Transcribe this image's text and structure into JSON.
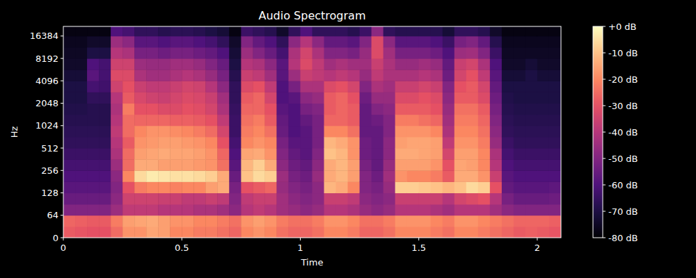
{
  "chart_data": {
    "type": "heatmap",
    "title": "Audio Spectrogram",
    "x_label": "Time",
    "y_label": "Hz",
    "xlim": [
      0,
      2.1
    ],
    "xticks": [
      0,
      0.5,
      1,
      1.5,
      2
    ],
    "ylim": [
      0,
      22050
    ],
    "yticks": [
      0,
      64,
      128,
      256,
      512,
      1024,
      2048,
      4096,
      8192,
      16384
    ],
    "log": "y",
    "x_bins": [
      0,
      0.05,
      0.1,
      0.15,
      0.2,
      0.25,
      0.3,
      0.35,
      0.4,
      0.45,
      0.5,
      0.55,
      0.6,
      0.65,
      0.7,
      0.75,
      0.8,
      0.85,
      0.9,
      0.95,
      1.0,
      1.05,
      1.1,
      1.15,
      1.2,
      1.25,
      1.3,
      1.35,
      1.4,
      1.45,
      1.5,
      1.55,
      1.6,
      1.65,
      1.7,
      1.75,
      1.8,
      1.85,
      1.9,
      1.95,
      2.0,
      2.05,
      2.1
    ],
    "y_bins": [
      0,
      32,
      64,
      90,
      128,
      181,
      256,
      362,
      512,
      724,
      1024,
      1448,
      2048,
      2896,
      4096,
      5793,
      8192,
      11585,
      16384,
      22050
    ],
    "cells": [
      [
        -28,
        -26,
        -50,
        -55,
        -58,
        -60,
        -62,
        -64,
        -66,
        -67,
        -68,
        -69,
        -70,
        -70,
        -72,
        -74,
        -75,
        -76,
        -78
      ],
      [
        -29,
        -27,
        -50,
        -55,
        -58,
        -60,
        -62,
        -64,
        -66,
        -67,
        -68,
        -69,
        -70,
        -70,
        -72,
        -74,
        -75,
        -76,
        -78
      ],
      [
        -30,
        -28,
        -50,
        -55,
        -58,
        -60,
        -62,
        -64,
        -66,
        -67,
        -68,
        -68,
        -66,
        -62,
        -58,
        -60,
        -70,
        -74,
        -78
      ],
      [
        -30,
        -28,
        -50,
        -55,
        -58,
        -60,
        -62,
        -64,
        -66,
        -67,
        -68,
        -68,
        -66,
        -63,
        -62,
        -62,
        -70,
        -74,
        -78
      ],
      [
        -25,
        -22,
        -45,
        -48,
        -50,
        -48,
        -45,
        -42,
        -40,
        -38,
        -40,
        -42,
        -40,
        -35,
        -32,
        -35,
        -40,
        -45,
        -60
      ],
      [
        -18,
        -16,
        -38,
        -35,
        -30,
        -20,
        -25,
        -25,
        -28,
        -25,
        -25,
        -22,
        -28,
        -30,
        -32,
        -35,
        -42,
        -48,
        -62
      ],
      [
        -18,
        -15,
        -38,
        -35,
        -22,
        -6,
        -14,
        -16,
        -18,
        -20,
        -26,
        -30,
        -33,
        -36,
        -42,
        -45,
        -52,
        -58,
        -66
      ],
      [
        -15,
        -14,
        -38,
        -35,
        -20,
        -3,
        -14,
        -15,
        -17,
        -18,
        -26,
        -30,
        -35,
        -38,
        -44,
        -46,
        -52,
        -58,
        -66
      ],
      [
        -16,
        -16,
        -40,
        -36,
        -20,
        -4,
        -16,
        -14,
        -16,
        -18,
        -26,
        -32,
        -36,
        -38,
        -44,
        -46,
        -54,
        -60,
        -68
      ],
      [
        -20,
        -18,
        -40,
        -36,
        -21,
        -5,
        -16,
        -15,
        -16,
        -19,
        -27,
        -32,
        -34,
        -36,
        -42,
        -44,
        -52,
        -58,
        -67
      ],
      [
        -20,
        -18,
        -40,
        -38,
        -20,
        -5,
        -16,
        -15,
        -17,
        -20,
        -27,
        -30,
        -32,
        -34,
        -40,
        -44,
        -52,
        -58,
        -67
      ],
      [
        -22,
        -20,
        -42,
        -38,
        -20,
        -6,
        -17,
        -16,
        -18,
        -22,
        -28,
        -31,
        -33,
        -35,
        -42,
        -46,
        -54,
        -60,
        -68
      ],
      [
        -22,
        -20,
        -42,
        -36,
        -16,
        -8,
        -18,
        -18,
        -20,
        -25,
        -30,
        -34,
        -36,
        -40,
        -46,
        -50,
        -56,
        -62,
        -70
      ],
      [
        -24,
        -22,
        -44,
        -38,
        -14,
        -14,
        -24,
        -26,
        -30,
        -34,
        -38,
        -42,
        -44,
        -48,
        -52,
        -55,
        -60,
        -66,
        -72
      ],
      [
        -26,
        -24,
        -48,
        -50,
        -52,
        -55,
        -58,
        -60,
        -62,
        -64,
        -64,
        -65,
        -66,
        -66,
        -68,
        -70,
        -72,
        -74,
        -78
      ],
      [
        -20,
        -18,
        -40,
        -38,
        -30,
        -10,
        -12,
        -15,
        -20,
        -22,
        -24,
        -26,
        -28,
        -32,
        -36,
        -40,
        -45,
        -50,
        -64
      ],
      [
        -18,
        -16,
        -38,
        -36,
        -28,
        -6,
        -8,
        -14,
        -18,
        -20,
        -22,
        -26,
        -26,
        -30,
        -38,
        -42,
        -50,
        -56,
        -66
      ],
      [
        -20,
        -18,
        -40,
        -36,
        -26,
        -8,
        -14,
        -18,
        -20,
        -24,
        -28,
        -30,
        -34,
        -38,
        -44,
        -48,
        -55,
        -60,
        -68
      ],
      [
        -24,
        -22,
        -44,
        -44,
        -46,
        -45,
        -48,
        -50,
        -52,
        -55,
        -56,
        -58,
        -60,
        -60,
        -58,
        -58,
        -62,
        -66,
        -74
      ],
      [
        -26,
        -24,
        -46,
        -48,
        -50,
        -52,
        -54,
        -56,
        -58,
        -60,
        -60,
        -60,
        -58,
        -52,
        -45,
        -40,
        -42,
        -48,
        -66
      ],
      [
        -26,
        -24,
        -48,
        -50,
        -52,
        -54,
        -56,
        -58,
        -58,
        -58,
        -56,
        -52,
        -48,
        -42,
        -36,
        -32,
        -34,
        -40,
        -60
      ],
      [
        -24,
        -22,
        -46,
        -48,
        -48,
        -46,
        -48,
        -50,
        -52,
        -52,
        -52,
        -50,
        -46,
        -42,
        -38,
        -38,
        -42,
        -48,
        -66
      ],
      [
        -20,
        -18,
        -40,
        -36,
        -12,
        -14,
        -14,
        -10,
        -12,
        -20,
        -26,
        -28,
        -28,
        -32,
        -40,
        -44,
        -50,
        -56,
        -66
      ],
      [
        -20,
        -18,
        -40,
        -36,
        -14,
        -12,
        -12,
        -12,
        -14,
        -20,
        -26,
        -26,
        -26,
        -30,
        -38,
        -42,
        -50,
        -56,
        -66
      ],
      [
        -22,
        -20,
        -42,
        -38,
        -20,
        -16,
        -16,
        -18,
        -18,
        -24,
        -28,
        -28,
        -30,
        -34,
        -40,
        -44,
        -52,
        -58,
        -68
      ],
      [
        -26,
        -24,
        -46,
        -48,
        -50,
        -50,
        -52,
        -54,
        -54,
        -56,
        -56,
        -56,
        -54,
        -50,
        -46,
        -44,
        -46,
        -50,
        -64
      ],
      [
        -26,
        -24,
        -48,
        -50,
        -52,
        -54,
        -56,
        -56,
        -56,
        -56,
        -54,
        -50,
        -46,
        -42,
        -38,
        -36,
        -32,
        -32,
        -48
      ],
      [
        -24,
        -22,
        -46,
        -48,
        -46,
        -44,
        -46,
        -48,
        -48,
        -50,
        -50,
        -48,
        -46,
        -44,
        -42,
        -42,
        -44,
        -48,
        -66
      ],
      [
        -20,
        -18,
        -40,
        -36,
        -8,
        -18,
        -16,
        -14,
        -16,
        -18,
        -22,
        -28,
        -32,
        -36,
        -42,
        -46,
        -52,
        -58,
        -68
      ],
      [
        -20,
        -18,
        -40,
        -36,
        -8,
        -20,
        -16,
        -14,
        -15,
        -18,
        -22,
        -28,
        -32,
        -36,
        -42,
        -46,
        -52,
        -58,
        -68
      ],
      [
        -20,
        -18,
        -40,
        -36,
        -9,
        -20,
        -16,
        -15,
        -15,
        -18,
        -24,
        -28,
        -30,
        -34,
        -40,
        -44,
        -52,
        -58,
        -68
      ],
      [
        -22,
        -20,
        -42,
        -36,
        -10,
        -22,
        -18,
        -16,
        -16,
        -20,
        -26,
        -30,
        -32,
        -36,
        -42,
        -46,
        -54,
        -60,
        -68
      ],
      [
        -24,
        -22,
        -44,
        -40,
        -12,
        -28,
        -30,
        -34,
        -38,
        -42,
        -44,
        -46,
        -48,
        -50,
        -54,
        -56,
        -60,
        -64,
        -72
      ],
      [
        -20,
        -18,
        -40,
        -34,
        -10,
        -14,
        -15,
        -16,
        -18,
        -20,
        -22,
        -24,
        -28,
        -30,
        -34,
        -36,
        -45,
        -52,
        -66
      ],
      [
        -20,
        -18,
        -40,
        -32,
        -6,
        -14,
        -16,
        -16,
        -18,
        -20,
        -22,
        -24,
        -28,
        -28,
        -30,
        -34,
        -44,
        -50,
        -66
      ],
      [
        -22,
        -20,
        -40,
        -30,
        -8,
        -18,
        -20,
        -20,
        -22,
        -24,
        -26,
        -28,
        -32,
        -34,
        -38,
        -42,
        -50,
        -56,
        -68
      ],
      [
        -24,
        -22,
        -44,
        -40,
        -30,
        -36,
        -40,
        -42,
        -46,
        -48,
        -50,
        -52,
        -54,
        -56,
        -58,
        -60,
        -64,
        -68,
        -74
      ],
      [
        -26,
        -24,
        -48,
        -52,
        -56,
        -58,
        -60,
        -62,
        -64,
        -66,
        -67,
        -68,
        -69,
        -70,
        -72,
        -74,
        -75,
        -76,
        -78
      ],
      [
        -28,
        -26,
        -50,
        -55,
        -58,
        -60,
        -62,
        -64,
        -66,
        -67,
        -68,
        -69,
        -70,
        -70,
        -72,
        -74,
        -75,
        -76,
        -78
      ],
      [
        -27,
        -26,
        -50,
        -55,
        -58,
        -60,
        -62,
        -64,
        -66,
        -67,
        -68,
        -69,
        -70,
        -70,
        -70,
        -72,
        -75,
        -76,
        -78
      ],
      [
        -28,
        -26,
        -50,
        -55,
        -58,
        -60,
        -62,
        -64,
        -66,
        -67,
        -68,
        -69,
        -70,
        -70,
        -72,
        -74,
        -75,
        -76,
        -78
      ],
      [
        -29,
        -27,
        -50,
        -54,
        -57,
        -60,
        -62,
        -64,
        -66,
        -67,
        -68,
        -69,
        -70,
        -70,
        -72,
        -74,
        -75,
        -76,
        -78
      ]
    ],
    "colorbar_range": [
      -80,
      0
    ],
    "colorbar_ticks": [
      {
        "value": 0,
        "label": "+0 dB"
      },
      {
        "value": -10,
        "label": "-10 dB"
      },
      {
        "value": -20,
        "label": "-20 dB"
      },
      {
        "value": -30,
        "label": "-30 dB"
      },
      {
        "value": -40,
        "label": "-40 dB"
      },
      {
        "value": -50,
        "label": "-50 dB"
      },
      {
        "value": -60,
        "label": "-60 dB"
      },
      {
        "value": -70,
        "label": "-70 dB"
      },
      {
        "value": -80,
        "label": "-80 dB"
      }
    ]
  }
}
